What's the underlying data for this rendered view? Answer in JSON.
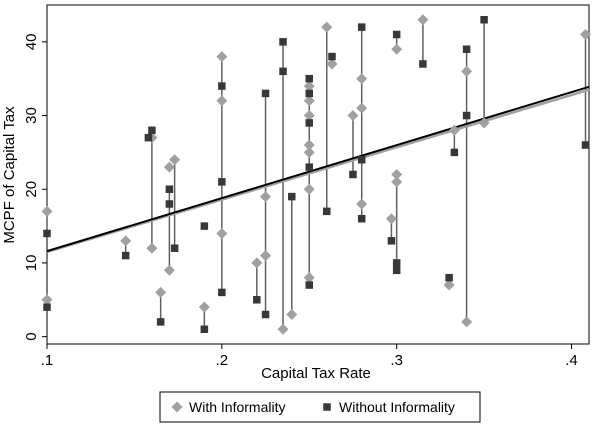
{
  "chart_data": {
    "type": "scatter",
    "title": "",
    "xlabel": "Capital Tax Rate",
    "ylabel": "MCPF of Capital Tax",
    "xlim": [
      0.1,
      0.41
    ],
    "ylim": [
      -1,
      45
    ],
    "x_ticks": [
      0.1,
      0.2,
      0.3,
      0.4
    ],
    "x_tick_labels": [
      ".1",
      ".2",
      ".3",
      ".4"
    ],
    "y_ticks": [
      0,
      10,
      20,
      30,
      40
    ],
    "y_tick_labels": [
      "0",
      "10",
      "20",
      "30",
      "40"
    ],
    "grid": false,
    "legend_position": "bottom",
    "series": [
      {
        "name": "With Informality",
        "marker": "diamond",
        "color": "#a0a0a0",
        "points": [
          [
            0.1,
            17
          ],
          [
            0.1,
            5
          ],
          [
            0.145,
            13
          ],
          [
            0.16,
            12
          ],
          [
            0.16,
            27
          ],
          [
            0.165,
            6
          ],
          [
            0.17,
            9
          ],
          [
            0.17,
            23
          ],
          [
            0.173,
            24
          ],
          [
            0.19,
            4
          ],
          [
            0.2,
            38
          ],
          [
            0.2,
            32
          ],
          [
            0.2,
            14
          ],
          [
            0.22,
            10
          ],
          [
            0.225,
            19
          ],
          [
            0.225,
            11
          ],
          [
            0.235,
            1
          ],
          [
            0.24,
            3
          ],
          [
            0.25,
            34
          ],
          [
            0.25,
            32
          ],
          [
            0.25,
            30
          ],
          [
            0.25,
            26
          ],
          [
            0.25,
            25
          ],
          [
            0.25,
            20
          ],
          [
            0.25,
            8
          ],
          [
            0.26,
            42
          ],
          [
            0.263,
            37
          ],
          [
            0.275,
            30
          ],
          [
            0.28,
            35
          ],
          [
            0.28,
            31
          ],
          [
            0.28,
            18
          ],
          [
            0.297,
            16
          ],
          [
            0.3,
            21
          ],
          [
            0.3,
            22
          ],
          [
            0.3,
            39
          ],
          [
            0.315,
            43
          ],
          [
            0.33,
            7
          ],
          [
            0.333,
            28
          ],
          [
            0.34,
            36
          ],
          [
            0.34,
            2
          ],
          [
            0.35,
            29
          ],
          [
            0.408,
            41
          ]
        ]
      },
      {
        "name": "Without Informality",
        "marker": "square",
        "color": "#383838",
        "points": [
          [
            0.1,
            14
          ],
          [
            0.1,
            4
          ],
          [
            0.145,
            11
          ],
          [
            0.158,
            27
          ],
          [
            0.16,
            28
          ],
          [
            0.165,
            2
          ],
          [
            0.17,
            20
          ],
          [
            0.17,
            18
          ],
          [
            0.173,
            12
          ],
          [
            0.19,
            1
          ],
          [
            0.19,
            15
          ],
          [
            0.2,
            34
          ],
          [
            0.2,
            21
          ],
          [
            0.2,
            6
          ],
          [
            0.22,
            5
          ],
          [
            0.225,
            33
          ],
          [
            0.225,
            3
          ],
          [
            0.235,
            36
          ],
          [
            0.235,
            40
          ],
          [
            0.24,
            19
          ],
          [
            0.25,
            35
          ],
          [
            0.25,
            33
          ],
          [
            0.25,
            29
          ],
          [
            0.25,
            23
          ],
          [
            0.25,
            7
          ],
          [
            0.26,
            17
          ],
          [
            0.263,
            38
          ],
          [
            0.275,
            22
          ],
          [
            0.28,
            42
          ],
          [
            0.28,
            24
          ],
          [
            0.28,
            16
          ],
          [
            0.297,
            13
          ],
          [
            0.3,
            9
          ],
          [
            0.3,
            10
          ],
          [
            0.3,
            41
          ],
          [
            0.315,
            37
          ],
          [
            0.33,
            8
          ],
          [
            0.333,
            25
          ],
          [
            0.34,
            39
          ],
          [
            0.34,
            30
          ],
          [
            0.35,
            43
          ],
          [
            0.408,
            26
          ]
        ]
      }
    ],
    "connectors": [
      [
        0.1,
        17,
        14
      ],
      [
        0.1,
        5,
        4
      ],
      [
        0.145,
        13,
        11
      ],
      [
        0.16,
        12,
        28
      ],
      [
        0.165,
        6,
        2
      ],
      [
        0.17,
        9,
        20
      ],
      [
        0.173,
        24,
        12
      ],
      [
        0.19,
        4,
        1
      ],
      [
        0.2,
        38,
        6
      ],
      [
        0.22,
        10,
        5
      ],
      [
        0.225,
        33,
        3
      ],
      [
        0.235,
        40,
        1
      ],
      [
        0.24,
        19,
        3
      ],
      [
        0.25,
        35,
        7
      ],
      [
        0.26,
        42,
        17
      ],
      [
        0.263,
        38,
        37
      ],
      [
        0.275,
        30,
        22
      ],
      [
        0.28,
        42,
        16
      ],
      [
        0.297,
        16,
        13
      ],
      [
        0.3,
        22,
        9
      ],
      [
        0.3,
        41,
        39
      ],
      [
        0.315,
        43,
        37
      ],
      [
        0.33,
        8,
        7
      ],
      [
        0.333,
        28,
        25
      ],
      [
        0.34,
        39,
        2
      ],
      [
        0.35,
        43,
        29
      ],
      [
        0.408,
        41,
        26
      ]
    ],
    "fit_lines": [
      {
        "color": "#a0a0a0",
        "x": [
          0.1,
          0.41
        ],
        "y": [
          11.5,
          33.5
        ]
      },
      {
        "color": "#000000",
        "x": [
          0.1,
          0.41
        ],
        "y": [
          11.6,
          33.9
        ]
      }
    ]
  }
}
